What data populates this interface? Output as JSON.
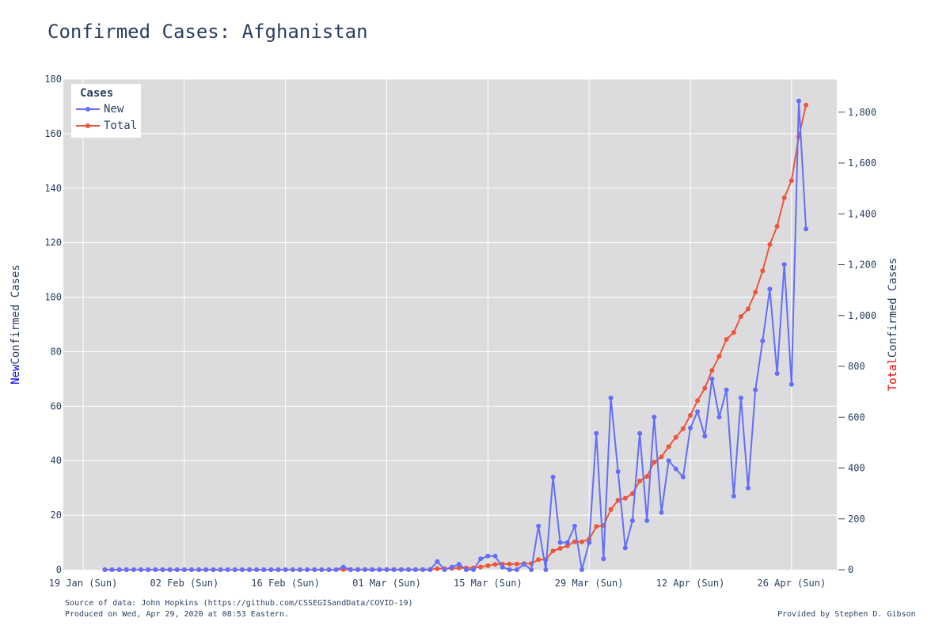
{
  "page": {
    "title": "Confirmed Cases: Afghanistan"
  },
  "footer": {
    "source": "Source of data: John Hopkins (https://github.com/CSSEGISandData/COVID-19)",
    "produced": "Produced on Wed, Apr 29, 2020 at 08:53 Eastern.",
    "credit": "Provided by Stephen D. Gibson"
  },
  "colors": {
    "new": "#636efa",
    "total": "#ef553b",
    "plot_bg": "#dcdcde",
    "new_label": "#0000ee",
    "total_label": "#ee0000"
  },
  "chart_data": {
    "type": "line",
    "title": "Confirmed Cases: Afghanistan",
    "xlabel": "",
    "y_left_label": {
      "prefix": "New",
      "rest": " Confirmed Cases"
    },
    "y_right_label": {
      "prefix": "Total",
      "rest": " Confirmed Cases"
    },
    "x_start": "2020-01-22",
    "x_range": [
      "2020-01-19",
      "2020-05-05"
    ],
    "x_ticks": [
      "19 Jan (Sun)",
      "02 Feb (Sun)",
      "16 Feb (Sun)",
      "01 Mar (Sun)",
      "15 Mar (Sun)",
      "29 Mar (Sun)",
      "12 Apr (Sun)",
      "26 Apr (Sun)"
    ],
    "y_left": {
      "range": [
        0,
        180
      ],
      "ticks": [
        "0",
        "20",
        "40",
        "60",
        "80",
        "100",
        "120",
        "140",
        "160",
        "180"
      ]
    },
    "y_right": {
      "range": [
        0,
        1930
      ],
      "ticks": [
        "0",
        "200",
        "400",
        "600",
        "800",
        "1,000",
        "1,200",
        "1,400",
        "1,600",
        "1,800"
      ]
    },
    "legend": {
      "title": "Cases",
      "placement": "top-left"
    },
    "grid": true,
    "series": [
      {
        "name": "New",
        "axis": "left",
        "values": [
          0,
          0,
          0,
          0,
          0,
          0,
          0,
          0,
          0,
          0,
          0,
          0,
          0,
          0,
          0,
          0,
          0,
          0,
          0,
          0,
          0,
          0,
          0,
          0,
          0,
          0,
          0,
          0,
          0,
          0,
          0,
          0,
          0,
          1,
          0,
          0,
          0,
          0,
          0,
          0,
          0,
          0,
          0,
          0,
          0,
          0,
          3,
          0,
          1,
          2,
          0,
          0,
          4,
          5,
          5,
          1,
          0,
          0,
          2,
          0,
          16,
          0,
          34,
          10,
          10,
          16,
          0,
          10,
          50,
          4,
          63,
          36,
          8,
          18,
          50,
          18,
          56,
          21,
          40,
          37,
          34,
          52,
          58,
          49,
          70,
          56,
          66,
          27,
          63,
          30,
          66,
          84,
          103,
          72,
          112,
          68,
          172,
          125
        ]
      },
      {
        "name": "Total",
        "axis": "right",
        "values": [
          0,
          0,
          0,
          0,
          0,
          0,
          0,
          0,
          0,
          0,
          0,
          0,
          0,
          0,
          0,
          0,
          0,
          0,
          0,
          0,
          0,
          0,
          0,
          0,
          0,
          0,
          0,
          0,
          0,
          0,
          0,
          0,
          0,
          1,
          1,
          1,
          1,
          1,
          1,
          1,
          1,
          1,
          1,
          1,
          1,
          1,
          4,
          4,
          5,
          7,
          7,
          7,
          11,
          16,
          21,
          22,
          22,
          22,
          24,
          24,
          40,
          40,
          74,
          84,
          94,
          110,
          110,
          120,
          170,
          174,
          237,
          273,
          281,
          299,
          349,
          367,
          423,
          444,
          484,
          521,
          555,
          607,
          665,
          714,
          784,
          840,
          906,
          933,
          996,
          1026,
          1092,
          1176,
          1279,
          1351,
          1463,
          1531,
          1703,
          1828
        ]
      }
    ]
  }
}
